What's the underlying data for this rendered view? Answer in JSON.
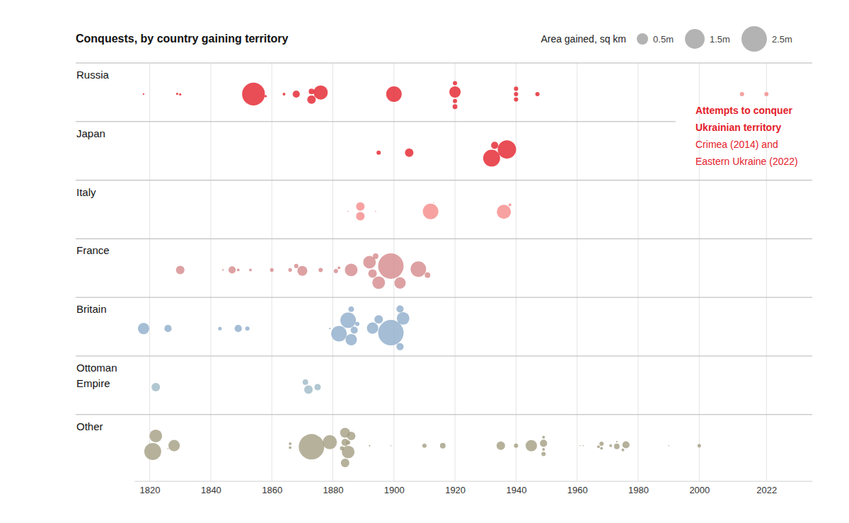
{
  "chart_data": {
    "type": "bubble",
    "title": "Conquests, by country gaining territory",
    "size_legend": {
      "title": "Area gained, sq km",
      "sizes": [
        {
          "value": 0.5,
          "label": "0.5m"
        },
        {
          "value": 1.5,
          "label": "1.5m"
        },
        {
          "value": 2.5,
          "label": "2.5m"
        }
      ]
    },
    "xlim": [
      1815,
      2037
    ],
    "xticks": [
      1820,
      1840,
      1860,
      1880,
      1900,
      1920,
      1940,
      1960,
      1980,
      2000,
      2022
    ],
    "annotation": {
      "title": [
        "Attempts to conquer",
        "Ukrainian territory"
      ],
      "text": [
        "Crimea (2014) and",
        "Eastern Ukraine (2022)"
      ],
      "color": "#e3202a"
    },
    "series": [
      {
        "name": "Russia",
        "color": "#e3202a",
        "x": [
          1818,
          1829,
          1830,
          1854,
          1858,
          1864,
          1868,
          1873,
          1873,
          1876,
          1900,
          1920,
          1920,
          1920,
          1920,
          1940,
          1940,
          1940,
          1947,
          2014,
          2022
        ],
        "sizes": [
          0.01,
          0.02,
          0.02,
          2,
          0.02,
          0.03,
          0.2,
          0.12,
          0.28,
          0.77,
          0.93,
          0.5,
          0.07,
          0.07,
          0.09,
          0.07,
          0.07,
          0.07,
          0.07,
          0.07,
          0.07
        ],
        "colors": [
          "#e3202a",
          "#e3202a",
          "#e3202a",
          "#e3202a",
          "#e3202a",
          "#e3202a",
          "#e3202a",
          "#e3202a",
          "#e3202a",
          "#e3202a",
          "#e3202a",
          "#e3202a",
          "#e3202a",
          "#e3202a",
          "#e3202a",
          "#e3202a",
          "#e3202a",
          "#e3202a",
          "#e3202a",
          "#f28b8b",
          "#f28b8b"
        ]
      },
      {
        "name": "Japan",
        "color": "#e3202a",
        "x": [
          1895,
          1905,
          1932,
          1933,
          1937
        ],
        "sizes": [
          0.07,
          0.28,
          1.1,
          0.2,
          1.3
        ]
      },
      {
        "name": "Italy",
        "color": "#f58a8a",
        "x": [
          1885,
          1889,
          1889,
          1894,
          1912,
          1913,
          1936,
          1938
        ],
        "sizes": [
          0.005,
          0.28,
          0.28,
          0.005,
          0.93,
          0.005,
          0.77,
          0.03
        ]
      },
      {
        "name": "France",
        "color": "#d4898c",
        "x": [
          1830,
          1844,
          1847,
          1849,
          1853,
          1860,
          1866,
          1868,
          1870,
          1876,
          1881,
          1882,
          1886,
          1892,
          1893,
          1894,
          1895,
          1899,
          1902,
          1908,
          1911
        ],
        "sizes": [
          0.28,
          0.01,
          0.2,
          0.03,
          0.03,
          0.05,
          0.05,
          0.07,
          0.38,
          0.07,
          0.07,
          0.03,
          0.62,
          0.62,
          0.28,
          0.12,
          0.62,
          2.5,
          0.5,
          0.93,
          0.12
        ]
      },
      {
        "name": "Britain",
        "color": "#8eaccb",
        "x": [
          1818,
          1826,
          1843,
          1849,
          1852,
          1879,
          1882,
          1885,
          1886,
          1886,
          1887,
          1888,
          1893,
          1895,
          1899,
          1902,
          1902,
          1903
        ],
        "sizes": [
          0.5,
          0.2,
          0.05,
          0.2,
          0.07,
          0.01,
          0.93,
          0.93,
          0.5,
          0.12,
          0.2,
          0.07,
          0.5,
          0.28,
          2.5,
          0.2,
          0.2,
          0.62
        ]
      },
      {
        "name": "Ottoman Empire",
        "color": "#9db9c6",
        "x": [
          1822,
          1871,
          1872,
          1875
        ],
        "sizes": [
          0.28,
          0.12,
          0.28,
          0.16
        ]
      },
      {
        "name": "Other",
        "color": "#a39e82",
        "x": [
          1821,
          1822,
          1826,
          1828,
          1866,
          1866,
          1873,
          1879,
          1883,
          1884,
          1884,
          1884,
          1885,
          1885,
          1886,
          1892,
          1899,
          1910,
          1916,
          1935,
          1940,
          1945,
          1949,
          1949,
          1949,
          1949,
          1961,
          1962,
          1967,
          1968,
          1968,
          1971,
          1973,
          1973,
          1975,
          1976,
          1990,
          2000
        ],
        "sizes": [
          1.1,
          0.62,
          0.005,
          0.5,
          0.03,
          0.03,
          2.5,
          0.77,
          0.07,
          0.38,
          0.28,
          0.2,
          0.62,
          0.07,
          0.28,
          0.01,
          0.005,
          0.07,
          0.12,
          0.28,
          0.07,
          0.5,
          0.03,
          0.03,
          0.07,
          0.2,
          0.005,
          0.005,
          0.03,
          0.07,
          0.03,
          0.03,
          0.12,
          0.01,
          0.03,
          0.2,
          0.005,
          0.05
        ]
      }
    ]
  }
}
